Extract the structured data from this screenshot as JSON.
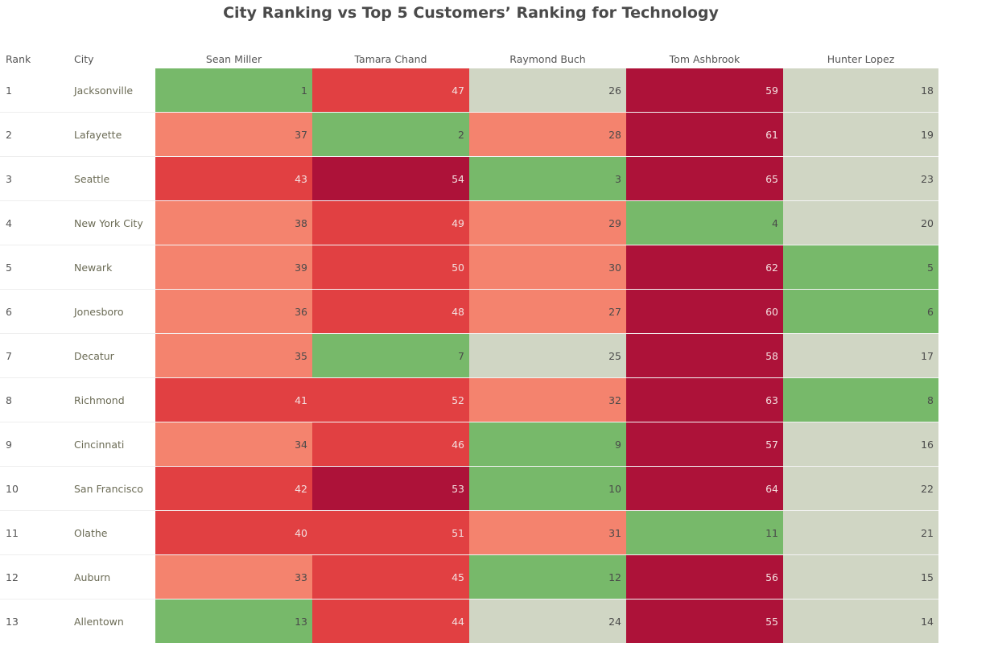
{
  "title": "City Ranking vs Top 5 Customers’ Ranking for Technology",
  "headers": {
    "rank": "Rank",
    "city": "City"
  },
  "colors": {
    "green": "#77b96a",
    "gray": "#d0d6c4",
    "salmon": "#f4836e",
    "red": "#e14042",
    "crimson": "#ad1239",
    "dark_text": "#4a4a4a",
    "light_text": "#f3dede"
  },
  "chart_data": {
    "type": "table",
    "title": "City Ranking vs Top 5 Customers’ Ranking for Technology",
    "columns": [
      "Sean Miller",
      "Tamara Chand",
      "Raymond Buch",
      "Tom Ashbrook",
      "Hunter Lopez"
    ],
    "rows": [
      {
        "rank": "1",
        "city": "Jacksonville",
        "values": [
          1,
          47,
          26,
          59,
          18
        ]
      },
      {
        "rank": "2",
        "city": "Lafayette",
        "values": [
          37,
          2,
          28,
          61,
          19
        ]
      },
      {
        "rank": "3",
        "city": "Seattle",
        "values": [
          43,
          54,
          3,
          65,
          23
        ]
      },
      {
        "rank": "4",
        "city": "New York City",
        "values": [
          38,
          49,
          29,
          4,
          20
        ]
      },
      {
        "rank": "5",
        "city": "Newark",
        "values": [
          39,
          50,
          30,
          62,
          5
        ]
      },
      {
        "rank": "6",
        "city": "Jonesboro",
        "values": [
          36,
          48,
          27,
          60,
          6
        ]
      },
      {
        "rank": "7",
        "city": "Decatur",
        "values": [
          35,
          7,
          25,
          58,
          17
        ]
      },
      {
        "rank": "8",
        "city": "Richmond",
        "values": [
          41,
          52,
          32,
          63,
          8
        ]
      },
      {
        "rank": "9",
        "city": "Cincinnati",
        "values": [
          34,
          46,
          9,
          57,
          16
        ]
      },
      {
        "rank": "10",
        "city": "San Francisco",
        "values": [
          42,
          53,
          10,
          64,
          22
        ]
      },
      {
        "rank": "11",
        "city": "Olathe",
        "values": [
          40,
          51,
          31,
          11,
          21
        ]
      },
      {
        "rank": "12",
        "city": "Auburn",
        "values": [
          33,
          45,
          12,
          56,
          15
        ]
      },
      {
        "rank": "13",
        "city": "Allentown",
        "values": [
          13,
          44,
          24,
          55,
          14
        ]
      }
    ],
    "cell_colors": [
      [
        "green",
        "red",
        "gray",
        "crimson",
        "gray"
      ],
      [
        "salmon",
        "green",
        "salmon",
        "crimson",
        "gray"
      ],
      [
        "red",
        "crimson",
        "green",
        "crimson",
        "gray"
      ],
      [
        "salmon",
        "red",
        "salmon",
        "green",
        "gray"
      ],
      [
        "salmon",
        "red",
        "salmon",
        "crimson",
        "green"
      ],
      [
        "salmon",
        "red",
        "salmon",
        "crimson",
        "green"
      ],
      [
        "salmon",
        "green",
        "gray",
        "crimson",
        "gray"
      ],
      [
        "red",
        "red",
        "salmon",
        "crimson",
        "green"
      ],
      [
        "salmon",
        "red",
        "green",
        "crimson",
        "gray"
      ],
      [
        "red",
        "crimson",
        "green",
        "crimson",
        "gray"
      ],
      [
        "red",
        "red",
        "salmon",
        "green",
        "gray"
      ],
      [
        "salmon",
        "red",
        "green",
        "crimson",
        "gray"
      ],
      [
        "green",
        "red",
        "gray",
        "crimson",
        "gray"
      ]
    ]
  }
}
